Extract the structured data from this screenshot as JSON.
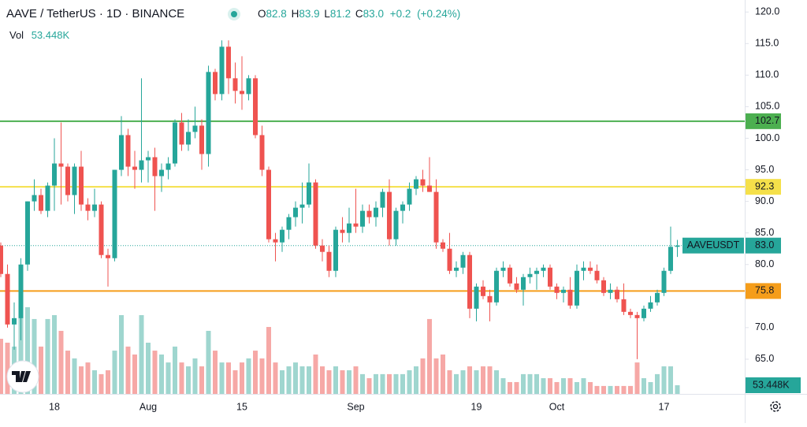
{
  "chart_data": {
    "type": "candlestick",
    "title": "AAVE / TetherUS · 1D · BINANCE",
    "ohlc_legend": [
      {
        "label": "O",
        "value": 82.8
      },
      {
        "label": "H",
        "value": 83.9
      },
      {
        "label": "L",
        "value": 81.2
      },
      {
        "label": "C",
        "value": 83,
        "value_label": "83.0"
      }
    ],
    "change": {
      "value": 0.2,
      "label": "+0.2"
    },
    "change_percent": {
      "value": 0.24,
      "label": "(+0.24%)"
    },
    "volume_title": "Vol",
    "last_volume": {
      "value": 53448,
      "label": "53.448K"
    },
    "symbol": "AAVEUSDT",
    "last_price": {
      "value": 83,
      "label": "83.0"
    },
    "levels": [
      {
        "value": 102.7,
        "color": "#4caf50",
        "text_color": "#ffffff"
      },
      {
        "value": 92.3,
        "color": "#f5e04a",
        "text_color": "#131722"
      },
      {
        "value": 75.8,
        "color": "#f59d1a",
        "text_color": "#131722"
      }
    ],
    "categories": [
      null,
      null,
      null,
      null,
      null,
      null,
      null,
      null,
      "18",
      null,
      null,
      null,
      null,
      null,
      null,
      null,
      null,
      null,
      null,
      null,
      null,
      null,
      "Aug",
      null,
      null,
      null,
      null,
      null,
      null,
      null,
      null,
      null,
      null,
      null,
      null,
      null,
      "15",
      null,
      null,
      null,
      null,
      null,
      null,
      null,
      null,
      null,
      null,
      null,
      null,
      null,
      null,
      null,
      null,
      "Sep",
      null,
      null,
      null,
      null,
      null,
      null,
      null,
      null,
      null,
      null,
      null,
      null,
      null,
      null,
      null,
      null,
      null,
      "19",
      null,
      null,
      null,
      null,
      null,
      null,
      null,
      null,
      null,
      null,
      null,
      "Oct",
      null,
      null,
      null,
      null,
      null,
      null,
      null,
      null,
      null,
      null,
      null,
      null,
      null,
      null,
      null,
      "17",
      null,
      null
    ],
    "open": [
      83,
      78.5,
      70.5,
      71.5,
      80,
      90,
      91,
      88.5,
      92.5,
      96,
      95.5,
      91,
      95.5,
      89.5,
      88.5,
      89.5,
      81.5,
      81,
      95,
      100.5,
      95.5,
      95,
      96.5,
      97,
      94,
      95,
      96,
      102.5,
      99,
      101,
      102,
      97.5,
      110.5,
      107,
      114.5,
      109.5,
      107.5,
      107,
      109.5,
      100.5,
      95,
      84,
      83.5,
      85.5,
      87.5,
      89,
      89.5,
      93,
      83,
      82,
      79,
      85.5,
      85,
      86.5,
      86,
      88.5,
      87.5,
      89,
      91.5,
      84,
      88.5,
      89.5,
      92,
      93.5,
      92.5,
      91.5,
      83.5,
      82.5,
      79,
      79.5,
      81.5,
      73,
      76.5,
      75,
      74,
      79,
      79.5,
      77,
      76,
      78,
      78.5,
      79,
      79.5,
      76.5,
      75.5,
      76,
      73.5,
      79,
      79.5,
      79,
      77.5,
      75.5,
      76,
      74.5,
      72.5,
      72,
      71.5,
      73,
      74,
      75.5,
      79,
      82.8
    ],
    "high": [
      83.5,
      80,
      74,
      81,
      90,
      93.5,
      92,
      93,
      100,
      102.5,
      96,
      96,
      98,
      90.5,
      92,
      90,
      82.5,
      95,
      103.5,
      101.5,
      98,
      109.5,
      98,
      98.5,
      96,
      97,
      103,
      104,
      103,
      105,
      103,
      111.5,
      111,
      115.5,
      115.5,
      112,
      113,
      110,
      110,
      102,
      95.5,
      85,
      86,
      88,
      90,
      93,
      96,
      93.5,
      84,
      83,
      86,
      87.5,
      89,
      92,
      89.5,
      89.5,
      90,
      92,
      93.5,
      89,
      90,
      93,
      94,
      95,
      97,
      93.5,
      84,
      85,
      80.5,
      82,
      82,
      77,
      77.5,
      76,
      79.5,
      80.5,
      80,
      78,
      78.5,
      79.5,
      79.5,
      80,
      80,
      77,
      76.5,
      78,
      80,
      80.5,
      80.5,
      80,
      78,
      77,
      76.5,
      77,
      73,
      72.5,
      73.5,
      75,
      76,
      79.5,
      86,
      83.9
    ],
    "low": [
      78,
      70,
      66.5,
      68,
      79,
      88.5,
      88,
      87.5,
      88.5,
      89.5,
      90,
      88,
      88.5,
      87,
      87.5,
      81,
      76.5,
      80.5,
      94,
      94,
      92,
      93,
      93,
      88.5,
      91.5,
      93.5,
      95.5,
      98,
      98,
      100,
      95,
      95.5,
      106,
      106,
      107,
      105.5,
      104.5,
      106,
      100,
      94,
      83.5,
      80.5,
      82,
      84,
      86,
      86.5,
      89,
      82.5,
      80.5,
      78,
      78,
      83.5,
      83.5,
      85,
      85,
      86.5,
      86,
      87.5,
      83,
      83,
      86.5,
      88.5,
      91,
      91.5,
      91.5,
      82.5,
      82,
      78.5,
      78,
      78.5,
      71.5,
      71,
      74.5,
      71,
      73.5,
      78,
      76.5,
      75.5,
      73.5,
      77,
      76,
      78,
      76,
      74.5,
      74,
      73,
      73,
      77.5,
      78.5,
      77,
      75,
      74.5,
      74,
      72,
      71.5,
      65,
      71,
      72.5,
      73.5,
      75,
      78.5,
      81.2
    ],
    "close": [
      78.5,
      70.5,
      71.5,
      80,
      90,
      91,
      88.5,
      92.5,
      96,
      95.5,
      91,
      95.5,
      89.5,
      88.5,
      89.5,
      81.5,
      81,
      95,
      100.5,
      95.5,
      95,
      96.5,
      97,
      94,
      95,
      96,
      102.5,
      99,
      101,
      102,
      97.5,
      110.5,
      107,
      114.5,
      109.5,
      107.5,
      107,
      109.5,
      100.5,
      95,
      84,
      83.5,
      85.5,
      87.5,
      89,
      89.5,
      93,
      83,
      82,
      79,
      85.5,
      85,
      86.5,
      86,
      88.5,
      87.5,
      89,
      91.5,
      84,
      88.5,
      89.5,
      92,
      93.5,
      92.5,
      91.5,
      83.5,
      82.5,
      79,
      79.5,
      81.5,
      73,
      76.5,
      75,
      74,
      79,
      79.5,
      77,
      76,
      78,
      78.5,
      79,
      79.5,
      76.5,
      75.5,
      76,
      73.5,
      79,
      79.5,
      79,
      77.5,
      75.5,
      76,
      74.5,
      72.5,
      72,
      71.5,
      73,
      74,
      75.5,
      79,
      82.8,
      83
    ],
    "volume": [
      340000,
      316000,
      292000,
      608000,
      535000,
      462000,
      292000,
      462000,
      486000,
      389000,
      267000,
      219000,
      170000,
      194000,
      146000,
      122000,
      146000,
      267000,
      486000,
      292000,
      243000,
      486000,
      316000,
      267000,
      243000,
      194000,
      292000,
      194000,
      170000,
      219000,
      170000,
      389000,
      267000,
      194000,
      194000,
      146000,
      194000,
      219000,
      267000,
      219000,
      413000,
      194000,
      146000,
      170000,
      194000,
      170000,
      170000,
      243000,
      170000,
      146000,
      170000,
      146000,
      146000,
      170000,
      122000,
      97000,
      122000,
      122000,
      122000,
      122000,
      122000,
      146000,
      170000,
      219000,
      462000,
      219000,
      243000,
      146000,
      122000,
      146000,
      170000,
      146000,
      170000,
      170000,
      146000,
      97000,
      73000,
      73000,
      122000,
      122000,
      122000,
      97000,
      97000,
      73000,
      97000,
      97000,
      73000,
      97000,
      73000,
      49000,
      49000,
      49000,
      49000,
      49000,
      49000,
      194000,
      97000,
      73000,
      122000,
      170000,
      170000,
      53448
    ],
    "ylim": [
      59.5,
      121.9
    ],
    "yticks": [
      {
        "value": 65,
        "label": "65.0"
      },
      {
        "value": 70,
        "label": "70.0"
      },
      {
        "value": 75,
        "label": "75.0"
      },
      {
        "value": 80,
        "label": "80.0"
      },
      {
        "value": 85,
        "label": "85.0"
      },
      {
        "value": 90,
        "label": "90.0"
      },
      {
        "value": 95,
        "label": "95.0"
      },
      {
        "value": 100,
        "label": "100.0"
      },
      {
        "value": 105,
        "label": "105.0"
      },
      {
        "value": 110,
        "label": "110.0"
      },
      {
        "value": 115,
        "label": "115.0"
      },
      {
        "value": 120,
        "label": "120.0"
      }
    ],
    "y2lim": [
      0,
      2430000
    ],
    "colors": {
      "up": "#26a69a",
      "down": "#ef5350",
      "volume_up": "#9fd6cf",
      "volume_down": "#f6a8a6"
    }
  }
}
